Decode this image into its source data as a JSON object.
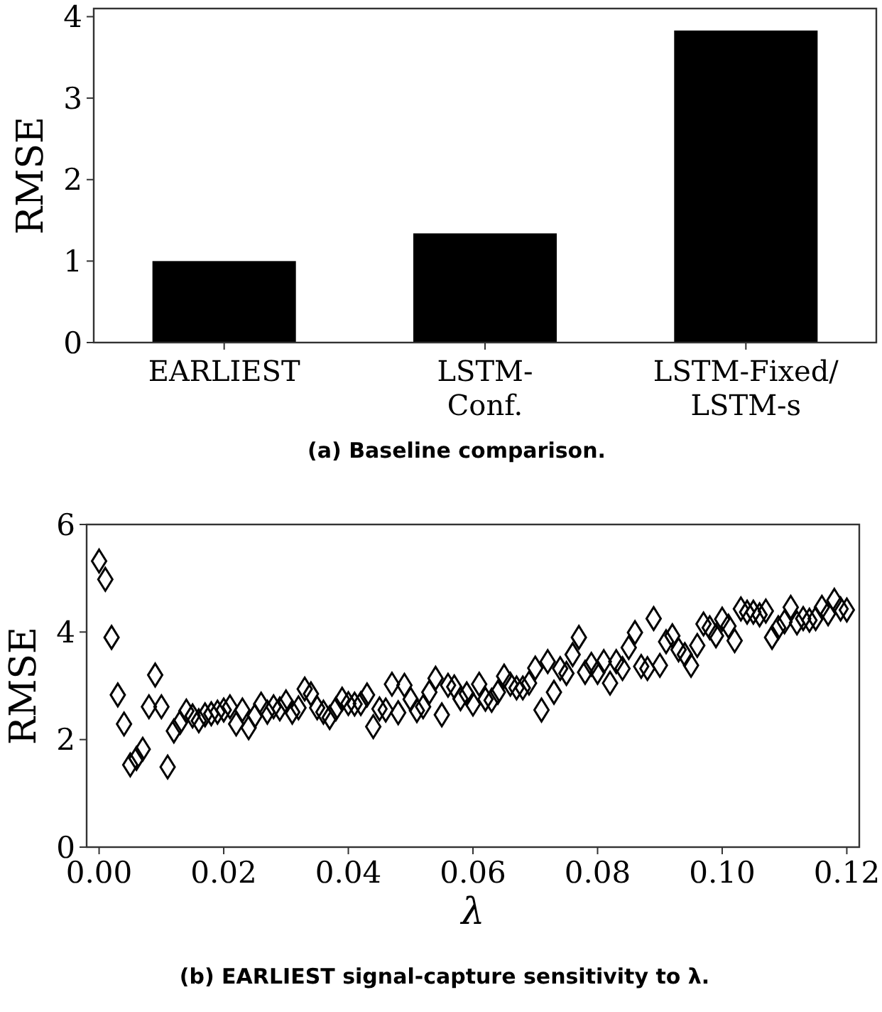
{
  "chart_data": [
    {
      "type": "bar",
      "title": "(a) Baseline comparison.",
      "ylabel": "RMSE",
      "categories": [
        "EARLIEST",
        "LSTM-\nConf.",
        "LSTM-Fixed/\nLSTM-s"
      ],
      "values": [
        1.0,
        1.34,
        3.83
      ],
      "color": "#000000",
      "ylim": [
        0,
        4.1
      ],
      "yticks": [
        0,
        1,
        2,
        3,
        4
      ],
      "grid": false
    },
    {
      "type": "scatter",
      "title": "(b) EARLIEST signal-capture sensitivity to λ.",
      "xlabel": "λ",
      "ylabel": "RMSE",
      "marker": "diamond",
      "grid": false,
      "xlim": [
        -0.002,
        0.122
      ],
      "ylim": [
        0,
        6
      ],
      "yticks": [
        0,
        2,
        4,
        6
      ],
      "xticks": [
        {
          "value": 0,
          "label": "0.00"
        },
        {
          "value": 0.02,
          "label": "0.02"
        },
        {
          "value": 0.04,
          "label": "0.04"
        },
        {
          "value": 0.06,
          "label": "0.06"
        },
        {
          "value": 0.08,
          "label": "0.08"
        },
        {
          "value": 0.1,
          "label": "0.10"
        },
        {
          "value": 0.12,
          "label": "0.12"
        }
      ],
      "series": [
        {
          "color": "#000000",
          "x": [
            0,
            0.001,
            0.002,
            0.003,
            0.004,
            0.005,
            0.006,
            0.007,
            0.008,
            0.009,
            0.01,
            0.011,
            0.012,
            0.013,
            0.014,
            0.015,
            0.016,
            0.017,
            0.018,
            0.019,
            0.02,
            0.021,
            0.022,
            0.023,
            0.024,
            0.025,
            0.026,
            0.027,
            0.028,
            0.029,
            0.03,
            0.031,
            0.032,
            0.033,
            0.034,
            0.035,
            0.036,
            0.037,
            0.038,
            0.039,
            0.04,
            0.041,
            0.042,
            0.043,
            0.044,
            0.045,
            0.046,
            0.047,
            0.048,
            0.049,
            0.05,
            0.051,
            0.052,
            0.053,
            0.054,
            0.055,
            0.056,
            0.057,
            0.058,
            0.059,
            0.06,
            0.061,
            0.062,
            0.063,
            0.064,
            0.065,
            0.066,
            0.067,
            0.068,
            0.069,
            0.07,
            0.071,
            0.072,
            0.073,
            0.074,
            0.075,
            0.076,
            0.077,
            0.078,
            0.079,
            0.08,
            0.081,
            0.082,
            0.083,
            0.084,
            0.085,
            0.086,
            0.087,
            0.088,
            0.089,
            0.09,
            0.091,
            0.092,
            0.093,
            0.094,
            0.095,
            0.096,
            0.097,
            0.098,
            0.099,
            0.1,
            0.101,
            0.102,
            0.103,
            0.104,
            0.105,
            0.106,
            0.107,
            0.108,
            0.109,
            0.11,
            0.111,
            0.112,
            0.113,
            0.114,
            0.115,
            0.116,
            0.117,
            0.118,
            0.119,
            0.12
          ],
          "values": [
            5.32,
            4.98,
            3.9,
            2.83,
            2.29,
            1.53,
            1.65,
            1.82,
            2.61,
            3.2,
            2.61,
            1.49,
            2.16,
            2.32,
            2.53,
            2.44,
            2.35,
            2.46,
            2.48,
            2.51,
            2.55,
            2.61,
            2.29,
            2.55,
            2.22,
            2.44,
            2.66,
            2.51,
            2.61,
            2.57,
            2.7,
            2.51,
            2.59,
            2.94,
            2.85,
            2.59,
            2.51,
            2.41,
            2.57,
            2.75,
            2.67,
            2.66,
            2.67,
            2.83,
            2.24,
            2.57,
            2.55,
            3.03,
            2.5,
            3.01,
            2.75,
            2.54,
            2.61,
            2.88,
            3.14,
            2.46,
            3.01,
            2.98,
            2.76,
            2.85,
            2.66,
            3.03,
            2.75,
            2.73,
            2.88,
            3.18,
            3.03,
            2.96,
            2.96,
            3.05,
            3.33,
            2.55,
            3.45,
            2.88,
            3.32,
            3.23,
            3.58,
            3.9,
            3.25,
            3.4,
            3.25,
            3.45,
            3.05,
            3.45,
            3.32,
            3.71,
            3.99,
            3.36,
            3.32,
            4.25,
            3.38,
            3.82,
            3.93,
            3.67,
            3.58,
            3.38,
            3.75,
            4.15,
            4.08,
            3.93,
            4.24,
            4.11,
            3.84,
            4.43,
            4.37,
            4.37,
            4.32,
            4.39,
            3.9,
            4.08,
            4.19,
            4.46,
            4.17,
            4.25,
            4.22,
            4.25,
            4.46,
            4.34,
            4.59,
            4.43,
            4.41
          ]
        }
      ]
    }
  ]
}
